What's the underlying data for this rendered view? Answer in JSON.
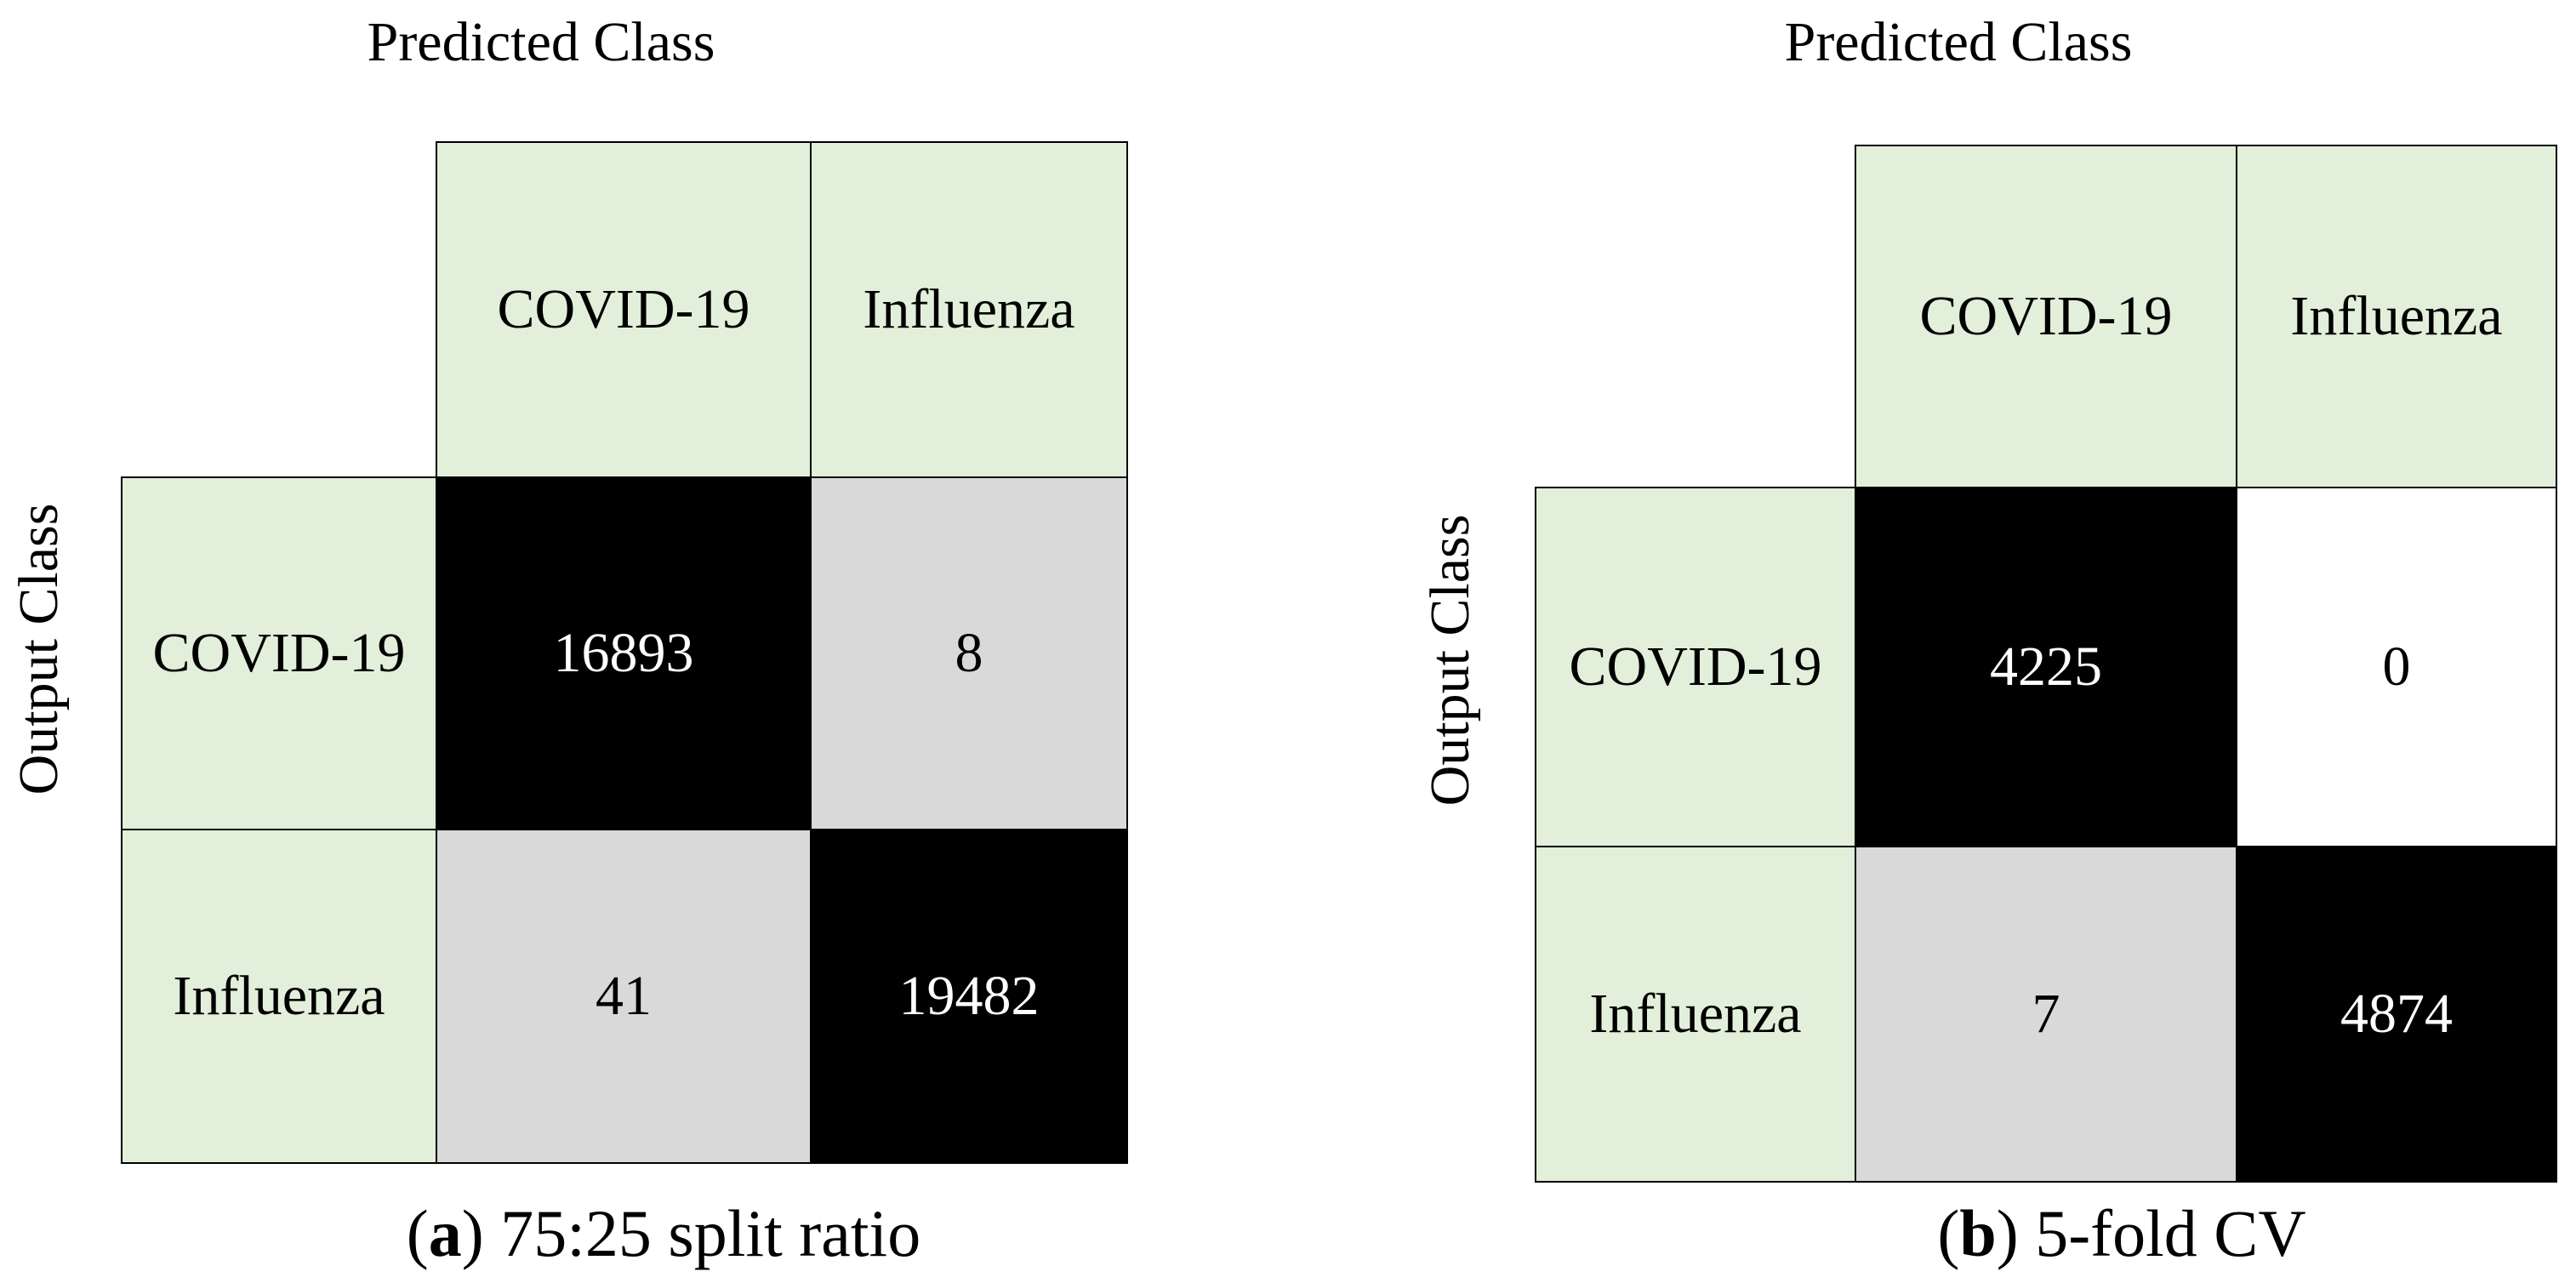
{
  "colors": {
    "header_bg": "#e2efda",
    "dark_cell": "#000000",
    "light_cell": "#d9d9d9",
    "zero_cell": "#ffffff"
  },
  "chart_data": [
    {
      "type": "heatmap",
      "xlabel": "Predicted Class",
      "ylabel": "Output Class",
      "columns": [
        "COVID-19",
        "Influenza"
      ],
      "rows": [
        "COVID-19",
        "Influenza"
      ],
      "values": [
        [
          16893,
          8
        ],
        [
          41,
          19482
        ]
      ],
      "caption_letter": "a",
      "caption_text": "75:25 split ratio"
    },
    {
      "type": "heatmap",
      "xlabel": "Predicted Class",
      "ylabel": "Output Class",
      "columns": [
        "COVID-19",
        "Influenza"
      ],
      "rows": [
        "COVID-19",
        "Influenza"
      ],
      "values": [
        [
          4225,
          0
        ],
        [
          7,
          4874
        ]
      ],
      "caption_letter": "b",
      "caption_text": "5-fold CV"
    }
  ]
}
